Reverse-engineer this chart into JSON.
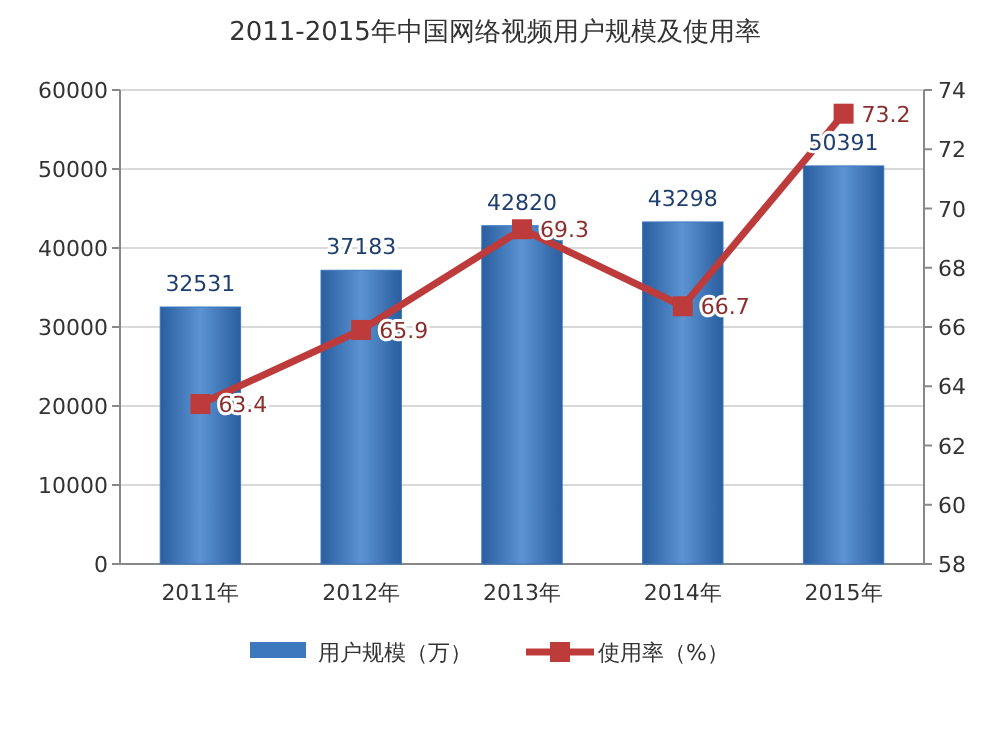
{
  "chart_data": {
    "type": "bar",
    "title": "2011-2015年中国网络视频用户规模及使用率",
    "categories": [
      "2011年",
      "2012年",
      "2013年",
      "2014年",
      "2015年"
    ],
    "series": [
      {
        "name": "用户规模（万）",
        "color": "#3d78bf",
        "values": [
          32531,
          37183,
          42820,
          43298,
          50391
        ]
      },
      {
        "name": "使用率（%）",
        "type": "line",
        "axis": "y2",
        "color": "#be3b3b",
        "values": [
          63.4,
          65.9,
          69.3,
          66.7,
          73.2
        ]
      }
    ],
    "ylim": [
      0,
      60000
    ],
    "yticks": [
      0,
      10000,
      20000,
      30000,
      40000,
      50000,
      60000
    ],
    "y2lim": [
      58,
      74
    ],
    "y2ticks": [
      58,
      60,
      62,
      64,
      66,
      68,
      70,
      72,
      74
    ],
    "grid": "y",
    "legend": "bottom",
    "marker": "square",
    "line_style": "solid",
    "data_labels": true
  }
}
